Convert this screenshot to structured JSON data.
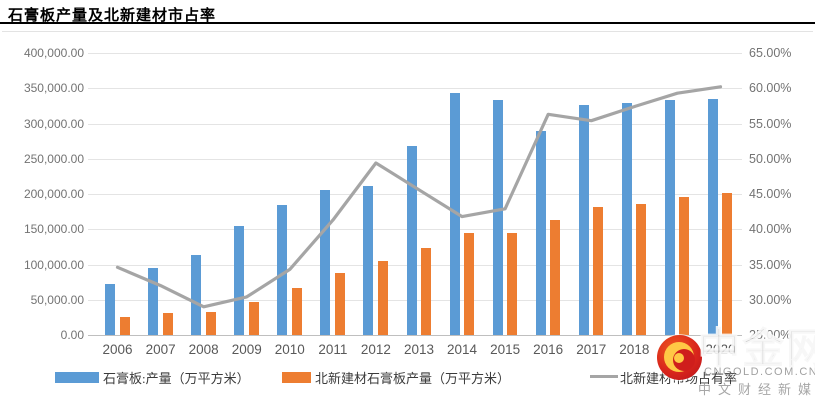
{
  "title": "石膏板产量及北新建材市占率",
  "watermark": {
    "brand": "中金网",
    "domain": "CNGOLD.COM.CN",
    "tagline": "中文财经新媒体"
  },
  "chart_data": {
    "type": "bar",
    "subtype": "grouped-bars-with-line-combo",
    "categories": [
      "2006",
      "2007",
      "2008",
      "2009",
      "2010",
      "2011",
      "2012",
      "2013",
      "2014",
      "2015",
      "2016",
      "2017",
      "2018",
      "2019",
      "2020"
    ],
    "series": [
      {
        "name": "石膏板:产量（万平方米）",
        "type": "bar",
        "axis": "left",
        "color": "#5B9BD5",
        "values": [
          72000,
          95000,
          113000,
          154000,
          185000,
          206000,
          211000,
          268000,
          343000,
          334000,
          289000,
          326000,
          329000,
          333000,
          335000
        ]
      },
      {
        "name": "北新建材石膏板产量（万平方米）",
        "type": "bar",
        "axis": "left",
        "color": "#ED7D31",
        "values": [
          25000,
          31000,
          33000,
          47000,
          66000,
          88000,
          105000,
          123000,
          144000,
          145000,
          163000,
          181000,
          186000,
          196000,
          201000
        ]
      },
      {
        "name": "北新建材市场占有率",
        "type": "line",
        "axis": "right",
        "color": "#A5A5A5",
        "values_pct": [
          34.6,
          32.0,
          29.0,
          30.4,
          34.3,
          41.3,
          49.4,
          45.6,
          41.8,
          42.9,
          56.3,
          55.4,
          57.4,
          59.3,
          60.2
        ]
      }
    ],
    "left_axis": {
      "min": 0,
      "max": 400000,
      "step": 50000,
      "tick_labels": [
        "0.00",
        "50,000.00",
        "100,000.00",
        "150,000.00",
        "200,000.00",
        "250,000.00",
        "300,000.00",
        "350,000.00",
        "400,000.00"
      ]
    },
    "right_axis": {
      "min": 25,
      "max": 65,
      "step": 5,
      "tick_labels": [
        "25.00%",
        "30.00%",
        "35.00%",
        "40.00%",
        "45.00%",
        "50.00%",
        "55.00%",
        "60.00%",
        "65.00%"
      ]
    },
    "grid": true,
    "legend_position": "bottom"
  }
}
